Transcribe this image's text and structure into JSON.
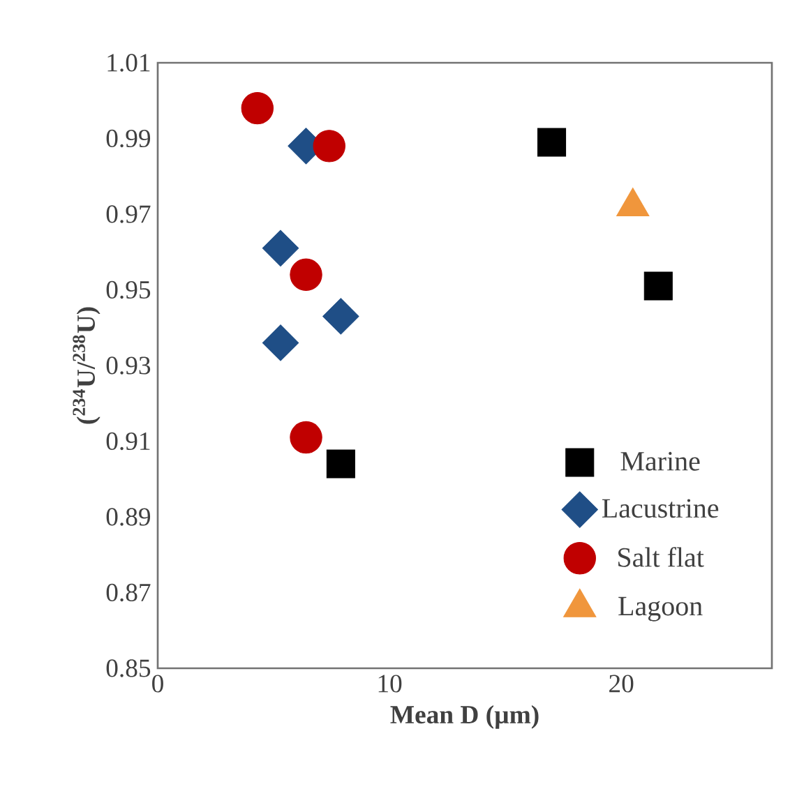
{
  "chart_data": {
    "type": "scatter",
    "xlabel": "Mean D (µm)",
    "ylabel": "($^{234}$U/$^{238}$U)",
    "xlim": [
      0,
      26.5
    ],
    "xticks": [
      0,
      10,
      20
    ],
    "ylim": [
      0.85,
      1.01
    ],
    "yticks": [
      0.85,
      0.87,
      0.89,
      0.91,
      0.93,
      0.95,
      0.97,
      0.99,
      1.01
    ],
    "legend": "bottom right",
    "grid": false,
    "series": [
      {
        "name": "Marine",
        "color": "#000000",
        "marker": "square",
        "x": [
          17.0,
          21.6,
          7.9
        ],
        "values": [
          0.989,
          0.951,
          0.904
        ]
      },
      {
        "name": "Lacustrine",
        "color": "#1f4e86",
        "marker": "diamond",
        "x": [
          6.4,
          5.3,
          7.9,
          5.3
        ],
        "values": [
          0.988,
          0.961,
          0.943,
          0.936
        ]
      },
      {
        "name": "Salt flat",
        "color": "#c00000",
        "marker": "circle",
        "x": [
          4.3,
          7.4,
          6.4,
          6.4
        ],
        "values": [
          0.998,
          0.988,
          0.954,
          0.911
        ]
      },
      {
        "name": "Lagoon",
        "color": "#f0963c",
        "marker": "triangle",
        "x": [
          20.5
        ],
        "values": [
          0.972
        ]
      }
    ]
  }
}
